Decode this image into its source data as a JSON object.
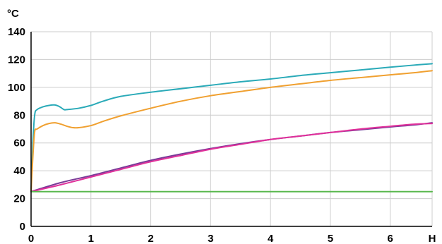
{
  "chart_data": {
    "type": "line",
    "title": "",
    "xlabel": "H",
    "ylabel": "°C",
    "x_ticks": [
      "0",
      "1",
      "2",
      "3",
      "4",
      "5",
      "6"
    ],
    "y_ticks": [
      "0",
      "20",
      "40",
      "60",
      "80",
      "100",
      "120",
      "140"
    ],
    "xlim": [
      0,
      6.7
    ],
    "ylim": [
      0,
      140
    ],
    "grid": true,
    "legend": "none",
    "colors": {
      "grid": "#cccccc",
      "axis": "#000000"
    },
    "series": [
      {
        "color": "#2aaab8",
        "points": [
          [
            0,
            25
          ],
          [
            0.03,
            60
          ],
          [
            0.06,
            80
          ],
          [
            0.1,
            84
          ],
          [
            0.2,
            86
          ],
          [
            0.3,
            87
          ],
          [
            0.4,
            87.3
          ],
          [
            0.48,
            86
          ],
          [
            0.55,
            84
          ],
          [
            0.6,
            84
          ],
          [
            0.8,
            85
          ],
          [
            1.0,
            87
          ],
          [
            1.2,
            90
          ],
          [
            1.5,
            93.5
          ],
          [
            2.0,
            96.5
          ],
          [
            2.5,
            99
          ],
          [
            3.0,
            101.5
          ],
          [
            3.5,
            104
          ],
          [
            4.0,
            106
          ],
          [
            4.5,
            108.5
          ],
          [
            5.0,
            110.5
          ],
          [
            5.5,
            112.5
          ],
          [
            6.0,
            114.5
          ],
          [
            6.4,
            116
          ],
          [
            6.7,
            117
          ]
        ]
      },
      {
        "color": "#f0a030",
        "points": [
          [
            0,
            25
          ],
          [
            0.03,
            50
          ],
          [
            0.06,
            68
          ],
          [
            0.1,
            70
          ],
          [
            0.2,
            72.5
          ],
          [
            0.3,
            74
          ],
          [
            0.4,
            74.5
          ],
          [
            0.5,
            73.5
          ],
          [
            0.6,
            72
          ],
          [
            0.7,
            71
          ],
          [
            0.8,
            71
          ],
          [
            1.0,
            72.5
          ],
          [
            1.2,
            75.5
          ],
          [
            1.5,
            79.5
          ],
          [
            2.0,
            85
          ],
          [
            2.5,
            90
          ],
          [
            3.0,
            94
          ],
          [
            3.5,
            97
          ],
          [
            4.0,
            100
          ],
          [
            4.5,
            102.5
          ],
          [
            5.0,
            105
          ],
          [
            5.5,
            107
          ],
          [
            6.0,
            109
          ],
          [
            6.4,
            110.5
          ],
          [
            6.7,
            112
          ]
        ]
      },
      {
        "color": "#7a3a98",
        "points": [
          [
            0,
            25
          ],
          [
            0.5,
            31.5
          ],
          [
            1.0,
            36.5
          ],
          [
            1.5,
            42
          ],
          [
            2.0,
            47.5
          ],
          [
            2.5,
            52
          ],
          [
            3.0,
            56
          ],
          [
            3.5,
            59.5
          ],
          [
            4.0,
            62.5
          ],
          [
            4.5,
            65
          ],
          [
            5.0,
            67.5
          ],
          [
            5.5,
            69.5
          ],
          [
            6.0,
            71.5
          ],
          [
            6.4,
            73
          ],
          [
            6.7,
            74.5
          ]
        ]
      },
      {
        "color": "#e0309a",
        "points": [
          [
            0,
            25
          ],
          [
            0.5,
            30
          ],
          [
            1.0,
            35.5
          ],
          [
            1.5,
            41
          ],
          [
            2.0,
            46.5
          ],
          [
            2.5,
            51
          ],
          [
            3.0,
            55.5
          ],
          [
            3.5,
            59
          ],
          [
            4.0,
            62.5
          ],
          [
            4.5,
            65
          ],
          [
            5.0,
            67.5
          ],
          [
            5.5,
            70
          ],
          [
            6.0,
            72
          ],
          [
            6.4,
            73.5
          ],
          [
            6.7,
            74
          ]
        ]
      },
      {
        "color": "#5ab84e",
        "points": [
          [
            0,
            25
          ],
          [
            1,
            25
          ],
          [
            2,
            25
          ],
          [
            3,
            25
          ],
          [
            4,
            25
          ],
          [
            5,
            25
          ],
          [
            6,
            25
          ],
          [
            6.7,
            25
          ]
        ]
      }
    ]
  }
}
